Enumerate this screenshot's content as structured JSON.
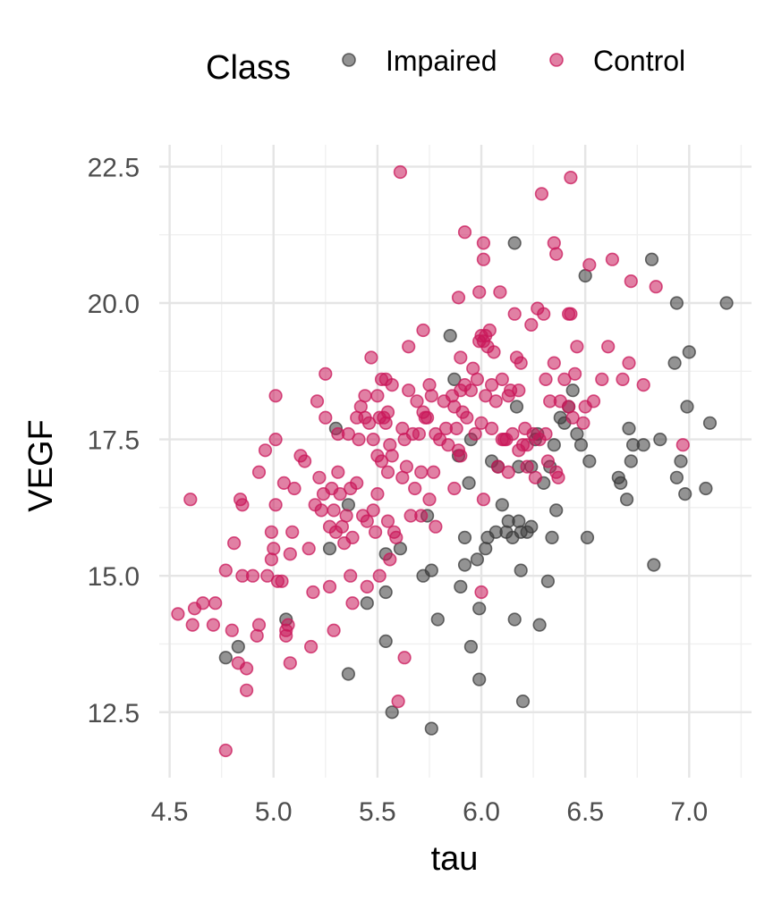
{
  "chart_data": {
    "type": "scatter",
    "xlabel": "tau",
    "ylabel": "VEGF",
    "legend_title": "Class",
    "legend_position": "top",
    "grid": true,
    "xlim": [
      4.45,
      7.3
    ],
    "ylim": [
      11.3,
      22.9
    ],
    "x_ticks": [
      4.5,
      5.0,
      5.5,
      6.0,
      6.5,
      7.0
    ],
    "x_tick_labels": [
      "4.5",
      "5.0",
      "5.5",
      "6.0",
      "6.5",
      "7.0"
    ],
    "y_ticks": [
      12.5,
      15.0,
      17.5,
      20.0,
      22.5
    ],
    "y_tick_labels": [
      "12.5",
      "15.0",
      "17.5",
      "20.0",
      "22.5"
    ],
    "series": [
      {
        "name": "Impaired",
        "color": "#3a3a3a",
        "points": [
          [
            4.77,
            13.5
          ],
          [
            4.83,
            13.7
          ],
          [
            5.06,
            14.2
          ],
          [
            5.27,
            15.5
          ],
          [
            5.3,
            17.7
          ],
          [
            5.36,
            16.3
          ],
          [
            5.36,
            13.2
          ],
          [
            5.45,
            14.5
          ],
          [
            5.54,
            15.4
          ],
          [
            5.54,
            14.7
          ],
          [
            5.54,
            13.8
          ],
          [
            5.57,
            12.5
          ],
          [
            5.61,
            15.5
          ],
          [
            5.72,
            15.0
          ],
          [
            5.74,
            16.1
          ],
          [
            5.76,
            15.1
          ],
          [
            5.76,
            12.2
          ],
          [
            5.79,
            14.2
          ],
          [
            5.85,
            19.4
          ],
          [
            5.87,
            18.6
          ],
          [
            5.89,
            17.2
          ],
          [
            5.9,
            14.8
          ],
          [
            5.92,
            15.2
          ],
          [
            5.92,
            15.7
          ],
          [
            5.94,
            16.7
          ],
          [
            5.95,
            17.5
          ],
          [
            5.95,
            13.7
          ],
          [
            5.98,
            15.3
          ],
          [
            5.99,
            14.4
          ],
          [
            5.99,
            13.1
          ],
          [
            6.02,
            15.5
          ],
          [
            6.03,
            15.7
          ],
          [
            6.05,
            17.1
          ],
          [
            6.07,
            15.8
          ],
          [
            6.08,
            17.0
          ],
          [
            6.1,
            16.3
          ],
          [
            6.12,
            15.8
          ],
          [
            6.13,
            16.0
          ],
          [
            6.15,
            15.7
          ],
          [
            6.16,
            14.2
          ],
          [
            6.16,
            21.1
          ],
          [
            6.17,
            18.1
          ],
          [
            6.18,
            16.0
          ],
          [
            6.18,
            17.0
          ],
          [
            6.19,
            15.8
          ],
          [
            6.19,
            15.1
          ],
          [
            6.2,
            12.7
          ],
          [
            6.22,
            15.8
          ],
          [
            6.24,
            15.9
          ],
          [
            6.24,
            17.0
          ],
          [
            6.26,
            17.5
          ],
          [
            6.27,
            17.6
          ],
          [
            6.28,
            14.1
          ],
          [
            6.3,
            16.7
          ],
          [
            6.32,
            14.9
          ],
          [
            6.33,
            17.0
          ],
          [
            6.34,
            15.7
          ],
          [
            6.35,
            17.4
          ],
          [
            6.36,
            16.2
          ],
          [
            6.38,
            17.9
          ],
          [
            6.4,
            17.8
          ],
          [
            6.42,
            18.1
          ],
          [
            6.44,
            18.4
          ],
          [
            6.46,
            17.6
          ],
          [
            6.48,
            17.4
          ],
          [
            6.5,
            20.5
          ],
          [
            6.51,
            15.7
          ],
          [
            6.52,
            17.1
          ],
          [
            6.66,
            16.8
          ],
          [
            6.67,
            16.7
          ],
          [
            6.7,
            16.4
          ],
          [
            6.71,
            17.7
          ],
          [
            6.72,
            17.1
          ],
          [
            6.73,
            17.4
          ],
          [
            6.78,
            17.4
          ],
          [
            6.82,
            20.8
          ],
          [
            6.83,
            15.2
          ],
          [
            6.86,
            17.5
          ],
          [
            6.93,
            18.9
          ],
          [
            6.94,
            20.0
          ],
          [
            6.94,
            16.8
          ],
          [
            6.96,
            17.1
          ],
          [
            6.98,
            16.5
          ],
          [
            6.99,
            18.1
          ],
          [
            7.0,
            19.1
          ],
          [
            7.08,
            16.6
          ],
          [
            7.1,
            17.8
          ],
          [
            7.18,
            20.0
          ]
        ]
      },
      {
        "name": "Control",
        "color": "#c9175a",
        "points": [
          [
            4.54,
            14.3
          ],
          [
            4.6,
            16.4
          ],
          [
            4.61,
            14.1
          ],
          [
            4.62,
            14.4
          ],
          [
            4.66,
            14.5
          ],
          [
            4.71,
            14.1
          ],
          [
            4.72,
            14.5
          ],
          [
            4.77,
            15.1
          ],
          [
            4.77,
            11.8
          ],
          [
            4.8,
            14.0
          ],
          [
            4.81,
            15.6
          ],
          [
            4.83,
            13.4
          ],
          [
            4.84,
            16.4
          ],
          [
            4.85,
            16.3
          ],
          [
            4.85,
            15.0
          ],
          [
            4.87,
            13.3
          ],
          [
            4.87,
            12.9
          ],
          [
            4.9,
            15.0
          ],
          [
            4.92,
            13.9
          ],
          [
            4.93,
            14.1
          ],
          [
            4.93,
            16.9
          ],
          [
            4.96,
            17.3
          ],
          [
            4.97,
            15.0
          ],
          [
            4.99,
            15.3
          ],
          [
            4.99,
            15.8
          ],
          [
            5.0,
            15.5
          ],
          [
            5.01,
            16.3
          ],
          [
            5.01,
            17.5
          ],
          [
            5.01,
            18.3
          ],
          [
            5.02,
            14.9
          ],
          [
            5.04,
            14.9
          ],
          [
            5.05,
            16.7
          ],
          [
            5.06,
            14.0
          ],
          [
            5.06,
            13.9
          ],
          [
            5.07,
            14.1
          ],
          [
            5.08,
            13.4
          ],
          [
            5.08,
            15.4
          ],
          [
            5.09,
            15.8
          ],
          [
            5.1,
            16.6
          ],
          [
            5.13,
            17.2
          ],
          [
            5.15,
            17.1
          ],
          [
            5.17,
            15.5
          ],
          [
            5.18,
            13.7
          ],
          [
            5.19,
            14.7
          ],
          [
            5.2,
            16.3
          ],
          [
            5.21,
            18.2
          ],
          [
            5.22,
            16.8
          ],
          [
            5.23,
            16.2
          ],
          [
            5.24,
            16.5
          ],
          [
            5.25,
            17.9
          ],
          [
            5.25,
            18.7
          ],
          [
            5.27,
            15.9
          ],
          [
            5.27,
            14.8
          ],
          [
            5.28,
            16.6
          ],
          [
            5.29,
            16.2
          ],
          [
            5.29,
            14.0
          ],
          [
            5.3,
            15.8
          ],
          [
            5.31,
            17.6
          ],
          [
            5.31,
            16.9
          ],
          [
            5.32,
            16.5
          ],
          [
            5.33,
            15.9
          ],
          [
            5.34,
            15.6
          ],
          [
            5.35,
            16.1
          ],
          [
            5.36,
            17.6
          ],
          [
            5.37,
            16.6
          ],
          [
            5.37,
            15.0
          ],
          [
            5.38,
            15.7
          ],
          [
            5.38,
            14.5
          ],
          [
            5.4,
            17.9
          ],
          [
            5.4,
            16.7
          ],
          [
            5.41,
            17.5
          ],
          [
            5.42,
            18.1
          ],
          [
            5.43,
            16.1
          ],
          [
            5.44,
            18.3
          ],
          [
            5.44,
            17.9
          ],
          [
            5.45,
            16.0
          ],
          [
            5.45,
            14.8
          ],
          [
            5.46,
            17.8
          ],
          [
            5.47,
            19.0
          ],
          [
            5.48,
            17.5
          ],
          [
            5.48,
            16.2
          ],
          [
            5.49,
            15.8
          ],
          [
            5.5,
            18.3
          ],
          [
            5.5,
            17.2
          ],
          [
            5.5,
            16.5
          ],
          [
            5.51,
            17.9
          ],
          [
            5.51,
            15.0
          ],
          [
            5.52,
            18.6
          ],
          [
            5.52,
            17.1
          ],
          [
            5.53,
            17.9
          ],
          [
            5.54,
            18.6
          ],
          [
            5.54,
            17.8
          ],
          [
            5.55,
            18.0
          ],
          [
            5.55,
            16.9
          ],
          [
            5.55,
            16.0
          ],
          [
            5.56,
            15.3
          ],
          [
            5.56,
            17.4
          ],
          [
            5.57,
            18.5
          ],
          [
            5.57,
            17.2
          ],
          [
            5.58,
            15.8
          ],
          [
            5.59,
            15.7
          ],
          [
            5.6,
            12.7
          ],
          [
            5.61,
            22.4
          ],
          [
            5.62,
            17.7
          ],
          [
            5.62,
            16.8
          ],
          [
            5.63,
            17.5
          ],
          [
            5.63,
            13.5
          ],
          [
            5.64,
            17.0
          ],
          [
            5.65,
            19.2
          ],
          [
            5.65,
            18.4
          ],
          [
            5.66,
            16.1
          ],
          [
            5.67,
            17.6
          ],
          [
            5.68,
            16.6
          ],
          [
            5.69,
            18.2
          ],
          [
            5.7,
            17.6
          ],
          [
            5.71,
            16.9
          ],
          [
            5.71,
            16.1
          ],
          [
            5.72,
            18.0
          ],
          [
            5.72,
            19.5
          ],
          [
            5.73,
            17.9
          ],
          [
            5.74,
            17.9
          ],
          [
            5.75,
            16.4
          ],
          [
            5.75,
            18.5
          ],
          [
            5.76,
            18.3
          ],
          [
            5.77,
            16.9
          ],
          [
            5.78,
            17.6
          ],
          [
            5.78,
            15.9
          ],
          [
            5.8,
            17.5
          ],
          [
            5.82,
            18.2
          ],
          [
            5.83,
            17.7
          ],
          [
            5.84,
            17.4
          ],
          [
            5.86,
            18.3
          ],
          [
            5.87,
            18.1
          ],
          [
            5.87,
            16.6
          ],
          [
            5.88,
            17.7
          ],
          [
            5.89,
            20.1
          ],
          [
            5.89,
            17.3
          ],
          [
            5.9,
            19.0
          ],
          [
            5.9,
            18.4
          ],
          [
            5.9,
            17.2
          ],
          [
            5.91,
            18.0
          ],
          [
            5.92,
            21.3
          ],
          [
            5.92,
            18.5
          ],
          [
            5.93,
            17.9
          ],
          [
            5.95,
            18.4
          ],
          [
            5.96,
            18.8
          ],
          [
            5.97,
            17.6
          ],
          [
            5.98,
            18.6
          ],
          [
            5.99,
            20.2
          ],
          [
            5.99,
            19.3
          ],
          [
            6.0,
            19.4
          ],
          [
            6.0,
            17.8
          ],
          [
            6.0,
            14.7
          ],
          [
            6.01,
            21.1
          ],
          [
            6.01,
            20.8
          ],
          [
            6.01,
            16.4
          ],
          [
            6.01,
            19.3
          ],
          [
            6.02,
            18.3
          ],
          [
            6.02,
            19.4
          ],
          [
            6.03,
            19.2
          ],
          [
            6.04,
            19.5
          ],
          [
            6.05,
            18.5
          ],
          [
            6.05,
            17.7
          ],
          [
            6.06,
            19.1
          ],
          [
            6.07,
            18.2
          ],
          [
            6.08,
            17.0
          ],
          [
            6.09,
            20.2
          ],
          [
            6.1,
            18.6
          ],
          [
            6.1,
            17.5
          ],
          [
            6.11,
            17.5
          ],
          [
            6.12,
            17.5
          ],
          [
            6.13,
            18.3
          ],
          [
            6.13,
            16.9
          ],
          [
            6.14,
            18.4
          ],
          [
            6.15,
            17.6
          ],
          [
            6.16,
            19.8
          ],
          [
            6.17,
            19.0
          ],
          [
            6.18,
            18.4
          ],
          [
            6.18,
            17.3
          ],
          [
            6.19,
            18.9
          ],
          [
            6.2,
            17.4
          ],
          [
            6.21,
            17.7
          ],
          [
            6.22,
            17.4
          ],
          [
            6.22,
            17.0
          ],
          [
            6.24,
            19.6
          ],
          [
            6.25,
            17.6
          ],
          [
            6.26,
            16.8
          ],
          [
            6.27,
            19.9
          ],
          [
            6.28,
            17.5
          ],
          [
            6.29,
            22.0
          ],
          [
            6.3,
            19.8
          ],
          [
            6.31,
            18.6
          ],
          [
            6.31,
            17.6
          ],
          [
            6.32,
            17.1
          ],
          [
            6.33,
            18.2
          ],
          [
            6.35,
            21.1
          ],
          [
            6.35,
            18.9
          ],
          [
            6.36,
            20.9
          ],
          [
            6.36,
            16.9
          ],
          [
            6.37,
            16.8
          ],
          [
            6.38,
            18.2
          ],
          [
            6.4,
            18.6
          ],
          [
            6.42,
            18.1
          ],
          [
            6.42,
            19.8
          ],
          [
            6.43,
            22.3
          ],
          [
            6.43,
            19.8
          ],
          [
            6.44,
            17.9
          ],
          [
            6.45,
            18.7
          ],
          [
            6.46,
            19.2
          ],
          [
            6.49,
            17.8
          ],
          [
            6.5,
            18.1
          ],
          [
            6.52,
            20.7
          ],
          [
            6.54,
            18.2
          ],
          [
            6.58,
            18.6
          ],
          [
            6.61,
            19.2
          ],
          [
            6.63,
            20.8
          ],
          [
            6.68,
            18.6
          ],
          [
            6.71,
            18.9
          ],
          [
            6.72,
            20.4
          ],
          [
            6.78,
            18.5
          ],
          [
            6.84,
            20.3
          ],
          [
            6.97,
            17.4
          ]
        ]
      }
    ]
  }
}
